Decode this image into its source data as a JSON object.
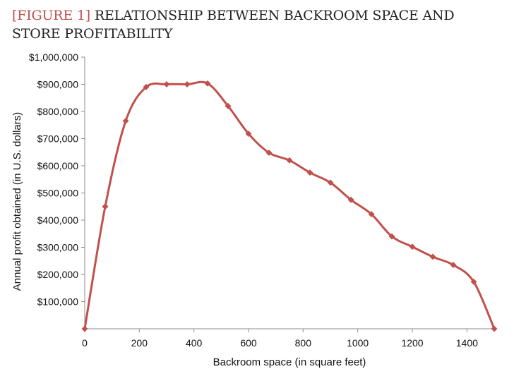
{
  "figure": {
    "tag": "[FIGURE 1]",
    "title": "RELATIONSHIP BETWEEN BACKROOM SPACE AND STORE PROFITABILITY"
  },
  "colors": {
    "series": "#c0504d",
    "axis": "#8c8c8c",
    "title_tag": "#c0504d"
  },
  "chart_data": {
    "type": "line",
    "title": "RELATIONSHIP BETWEEN BACKROOM SPACE AND STORE PROFITABILITY",
    "xlabel": "Backroom space (in square feet)",
    "ylabel": "Annual profit obtained (in U.S. dollars)",
    "xlim": [
      0,
      1500
    ],
    "ylim": [
      0,
      1000000
    ],
    "x_ticks": [
      0,
      200,
      400,
      600,
      800,
      1000,
      1200,
      1400
    ],
    "x_tick_labels": [
      "0",
      "200",
      "400",
      "600",
      "800",
      "1000",
      "1200",
      "1400"
    ],
    "y_ticks": [
      100000,
      200000,
      300000,
      400000,
      500000,
      600000,
      700000,
      800000,
      900000,
      1000000
    ],
    "y_tick_labels": [
      "$100,000",
      "$200,000",
      "$300,000",
      "$400,000",
      "$500,000",
      "$600,000",
      "$700,000",
      "$800,000",
      "$900,000",
      "$1,000,000"
    ],
    "grid": false,
    "smooth": true,
    "marker": "diamond",
    "series": [
      {
        "x": [
          0,
          75,
          150,
          225,
          300,
          375,
          450,
          525,
          600,
          675,
          750,
          825,
          900,
          975,
          1050,
          1125,
          1200,
          1275,
          1350,
          1425,
          1500
        ],
        "values": [
          0,
          450000,
          765000,
          890000,
          900000,
          900000,
          903000,
          820000,
          718000,
          648000,
          620000,
          575000,
          538000,
          475000,
          422000,
          340000,
          302000,
          265000,
          235000,
          173000,
          0
        ]
      }
    ]
  }
}
